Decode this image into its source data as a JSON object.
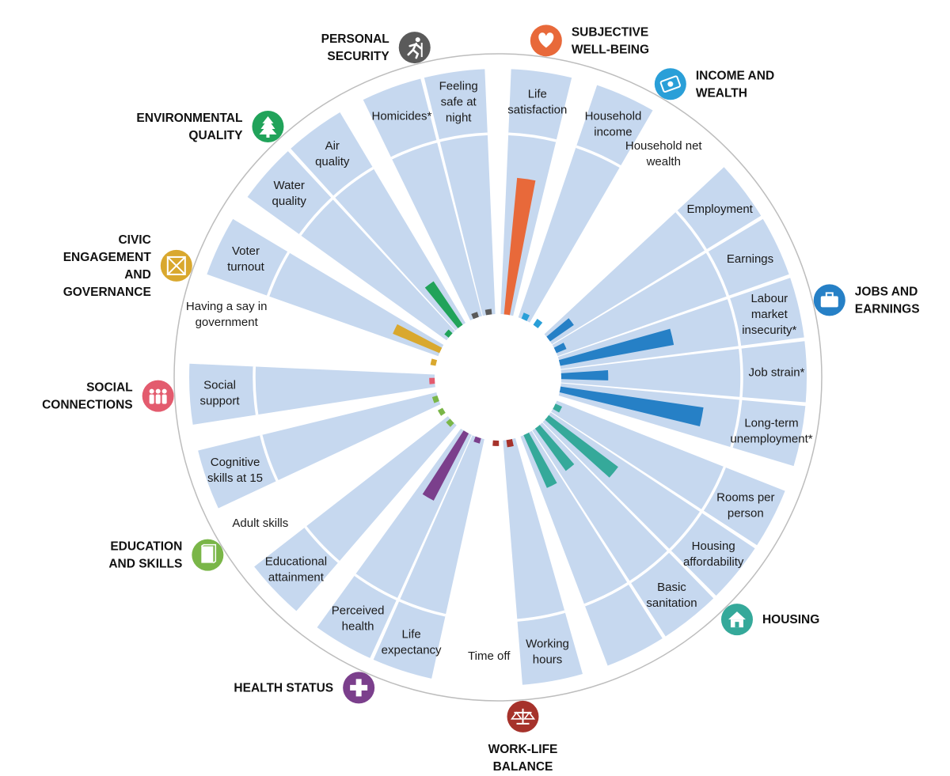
{
  "chart_data": {
    "type": "radial-bar",
    "scale_max": 10,
    "dimensions": [
      {
        "id": "subjective",
        "name": [
          "SUBJECTIVE",
          "WELL-BEING"
        ],
        "color": "#E8693A",
        "icon": "heart-icon",
        "indicators": [
          {
            "label": [
              "Life",
              "satisfaction"
            ],
            "value": 7.6,
            "max": 9.3
          }
        ]
      },
      {
        "id": "income",
        "name": [
          "INCOME AND",
          "WEALTH"
        ],
        "color": "#2A9FD8",
        "icon": "banknote-icon",
        "indicators": [
          {
            "label": [
              "Household",
              "income"
            ],
            "value": 0.35,
            "max": 9.4
          },
          {
            "label": [
              "Household net",
              "wealth"
            ],
            "value": 0.4,
            "max": null
          }
        ]
      },
      {
        "id": "jobs",
        "name": [
          "JOBS AND",
          "EARNINGS"
        ],
        "color": "#2680C6",
        "icon": "briefcase-icon",
        "indicators": [
          {
            "label": [
              "Employment"
            ],
            "value": 1.6,
            "max": 9.9
          },
          {
            "label": [
              "Earnings"
            ],
            "value": 0.6,
            "max": 9.9
          },
          {
            "label": [
              "Labour",
              "market",
              "insecurity*"
            ],
            "value": 6.4,
            "max": 9.9
          },
          {
            "label": [
              "Job strain*"
            ],
            "value": 2.6,
            "max": 9.9
          },
          {
            "label": [
              "Long-term",
              "unemployment*"
            ],
            "value": 8.0,
            "max": 9.9
          }
        ]
      },
      {
        "id": "housing",
        "name": [
          "HOUSING"
        ],
        "color": "#35A99A",
        "icon": "house-icon",
        "indicators": [
          {
            "label": [
              "Rooms per",
              "person"
            ],
            "value": 0.4,
            "max": 9.8
          },
          {
            "label": [
              "Housing",
              "affordability"
            ],
            "value": 4.8,
            "max": 9.8
          },
          {
            "label": [
              "Basic",
              "sanitation"
            ],
            "value": 2.9,
            "max": 9.8
          },
          {
            "label": [],
            "value": 3.2,
            "max": 9.8
          }
        ]
      },
      {
        "id": "worklife",
        "name": [
          "WORK-LIFE",
          "BALANCE"
        ],
        "color": "#A6322B",
        "icon": "scales-icon",
        "indicators": [
          {
            "label": [
              "Working",
              "hours"
            ],
            "value": 0.4,
            "max": 9.6
          },
          {
            "label": [
              "Time off"
            ],
            "value": 0.3,
            "max": null
          }
        ]
      },
      {
        "id": "health",
        "name": [
          "HEALTH STATUS"
        ],
        "color": "#7B3F8C",
        "icon": "cross-icon",
        "indicators": [
          {
            "label": [
              "Life",
              "expectancy"
            ],
            "value": 0.3,
            "max": 9.6
          },
          {
            "label": [
              "Perceived",
              "health"
            ],
            "value": 4.2,
            "max": 9.6
          }
        ]
      },
      {
        "id": "education",
        "name": [
          "EDUCATION",
          "AND SKILLS"
        ],
        "color": "#7AB648",
        "icon": "book-icon",
        "indicators": [
          {
            "label": [
              "Educational",
              "attainment"
            ],
            "value": 0.3,
            "max": 9.2
          },
          {
            "label": [
              "Adult skills"
            ],
            "value": 0.3,
            "max": null
          },
          {
            "label": [
              "Cognitive",
              "skills at 15"
            ],
            "value": 0.3,
            "max": 9.2
          }
        ]
      },
      {
        "id": "social",
        "name": [
          "SOCIAL",
          "CONNECTIONS"
        ],
        "color": "#E35B6E",
        "icon": "people-icon",
        "indicators": [
          {
            "label": [
              "Social",
              "support"
            ],
            "value": 0.3,
            "max": 9.2
          }
        ]
      },
      {
        "id": "civic",
        "name": [
          "CIVIC",
          "ENGAGEMENT",
          "AND",
          "GOVERNANCE"
        ],
        "color": "#D9A82E",
        "icon": "ballot-icon",
        "indicators": [
          {
            "label": [
              "Having a say in",
              "government"
            ],
            "value": 0.3,
            "max": null
          },
          {
            "label": [
              "Voter",
              "turnout"
            ],
            "value": 2.8,
            "max": 9.5
          }
        ]
      },
      {
        "id": "environment",
        "name": [
          "ENVIRONMENTAL",
          "QUALITY"
        ],
        "color": "#21A35A",
        "icon": "tree-icon",
        "indicators": [
          {
            "label": [
              "Water",
              "quality"
            ],
            "value": 0.3,
            "max": 9.5
          },
          {
            "label": [
              "Air",
              "quality"
            ],
            "value": 2.9,
            "max": 9.5
          }
        ]
      },
      {
        "id": "security",
        "name": [
          "PERSONAL",
          "SECURITY"
        ],
        "color": "#5A5A5A",
        "icon": "runner-icon",
        "indicators": [
          {
            "label": [
              "Homicides*"
            ],
            "value": 0.3,
            "max": 9.5
          },
          {
            "label": [
              "Feeling",
              "safe at",
              "night"
            ],
            "value": 0.3,
            "max": 9.5
          }
        ]
      }
    ]
  }
}
